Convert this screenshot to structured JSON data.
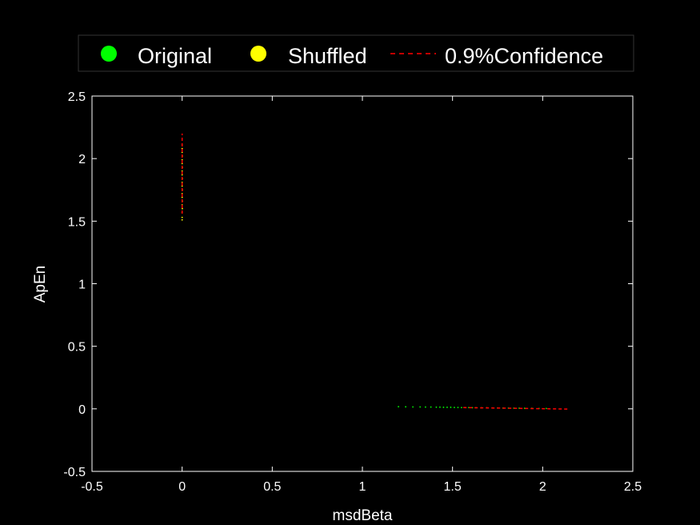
{
  "chart_data": {
    "type": "scatter",
    "xlabel": "msdBeta",
    "ylabel": "ApEn",
    "xlim": [
      -0.5,
      2.5
    ],
    "ylim": [
      -0.5,
      2.5
    ],
    "xticks": [
      "-0.5",
      "0",
      "0.5",
      "1",
      "1.5",
      "2",
      "2.5"
    ],
    "yticks": [
      "-0.5",
      "0",
      "0.5",
      "1",
      "1.5",
      "2",
      "2.5"
    ],
    "xtick_values": [
      -0.5,
      0,
      0.5,
      1,
      1.5,
      2,
      2.5
    ],
    "ytick_values": [
      -0.5,
      0,
      0.5,
      1,
      1.5,
      2,
      2.5
    ],
    "grid": false,
    "legend_position": "top",
    "series": [
      {
        "name": "Original",
        "marker": "dot",
        "color": "#00ff00",
        "points": [
          [
            1.2,
            0.017
          ],
          [
            1.24,
            0.016
          ],
          [
            1.28,
            0.015
          ],
          [
            1.32,
            0.015
          ],
          [
            1.35,
            0.014
          ],
          [
            1.38,
            0.014
          ],
          [
            1.41,
            0.013
          ],
          [
            1.43,
            0.013
          ],
          [
            1.45,
            0.012
          ],
          [
            1.47,
            0.012
          ],
          [
            1.49,
            0.012
          ],
          [
            1.51,
            0.011
          ],
          [
            1.53,
            0.011
          ],
          [
            1.55,
            0.01
          ],
          [
            1.57,
            0.01
          ],
          [
            1.59,
            0.01
          ],
          [
            1.61,
            0.009
          ],
          [
            1.63,
            0.009
          ],
          [
            1.66,
            0.008
          ],
          [
            1.69,
            0.008
          ],
          [
            1.72,
            0.007
          ],
          [
            1.75,
            0.007
          ],
          [
            1.78,
            0.006
          ],
          [
            1.81,
            0.006
          ],
          [
            1.84,
            0.005
          ],
          [
            1.87,
            0.005
          ],
          [
            1.9,
            0.004
          ],
          [
            1.94,
            0.004
          ],
          [
            1.98,
            0.003
          ],
          [
            2.02,
            0.003
          ]
        ]
      },
      {
        "name": "Shuffled",
        "marker": "dot",
        "color": "#ffff00",
        "points": [
          [
            0.0,
            1.51
          ],
          [
            0.0,
            1.53
          ],
          [
            0.0,
            1.57
          ],
          [
            0.001,
            1.6
          ],
          [
            0.0,
            1.63
          ],
          [
            0.001,
            1.66
          ],
          [
            0.0,
            1.69
          ],
          [
            0.0,
            1.72
          ],
          [
            0.001,
            1.75
          ],
          [
            0.0,
            1.78
          ],
          [
            0.0,
            1.81
          ],
          [
            0.001,
            1.84
          ],
          [
            0.0,
            1.87
          ],
          [
            0.0,
            1.9
          ],
          [
            0.001,
            1.93
          ],
          [
            0.0,
            1.96
          ],
          [
            0.0,
            1.99
          ],
          [
            0.001,
            2.02
          ],
          [
            0.0,
            2.05
          ],
          [
            0.0,
            2.08
          ],
          [
            0.0,
            2.11
          ]
        ]
      },
      {
        "name": "0.9%Confidence",
        "marker": "dashed-line",
        "color": "#ff0000",
        "segments": [
          [
            [
              0.0,
              1.56
            ],
            [
              0.0,
              2.2
            ]
          ],
          [
            [
              1.56,
              0.01
            ],
            [
              2.14,
              -0.002
            ]
          ]
        ]
      }
    ]
  }
}
